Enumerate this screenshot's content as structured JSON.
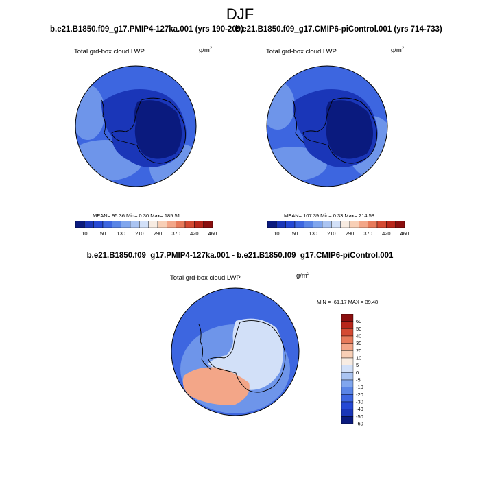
{
  "title": "DJF",
  "panels": [
    {
      "title": "b.e21.B1850.f09_g17.PMIP4-127ka.001 (yrs 190-209)",
      "variable": "Total grd-box cloud LWP",
      "units": "g/m",
      "units_exp": "2",
      "stats": "MEAN=  95.36  Min=   0.30  Max= 185.51"
    },
    {
      "title": "b.e21.B1850.f09_g17.CMIP6-piControl.001 (yrs 714-733)",
      "variable": "Total grd-box cloud LWP",
      "units": "g/m",
      "units_exp": "2",
      "stats": "MEAN= 107.39  Min=   0.33  Max= 214.58"
    }
  ],
  "diff_panel": {
    "title": "b.e21.B1850.f09_g17.PMIP4-127ka.001 - b.e21.B1850.f09_g17.CMIP6-piControl.001",
    "variable": "Total grd-box cloud LWP",
    "units": "g/m",
    "units_exp": "2",
    "stats": "MIN = -61.17  MAX =  39.48"
  },
  "abs_colorbar": {
    "colors": [
      "#0a1a7e",
      "#1a36b8",
      "#2548d4",
      "#3d66e0",
      "#5a85e6",
      "#80a6ee",
      "#aac4f2",
      "#d2e0f8",
      "#f8ece2",
      "#f8cfb6",
      "#f3a688",
      "#e77a5a",
      "#d44a32",
      "#b8261a",
      "#8a0e0e"
    ],
    "labels": [
      "10",
      "50",
      "130",
      "210",
      "290",
      "370",
      "420",
      "460"
    ]
  },
  "diff_colorbar": {
    "colors": [
      "#0a1a7e",
      "#1a36b8",
      "#2548d4",
      "#3d66e0",
      "#5a85e6",
      "#80a6ee",
      "#aac4f2",
      "#d2e0f8",
      "#f8ece2",
      "#f8cfb6",
      "#f3a688",
      "#e77a5a",
      "#d44a32",
      "#b8261a",
      "#8a0e0e"
    ],
    "labels": [
      "60",
      "50",
      "40",
      "30",
      "20",
      "10",
      "5",
      "0",
      "-5",
      "-10",
      "-20",
      "-30",
      "-40",
      "-50",
      "-60"
    ]
  },
  "map_colors": {
    "ocean_light": "#6e95ea",
    "ocean_mid": "#3d66e0",
    "coast_deep": "#1a36b8",
    "interior": "#0a1a7e",
    "diff_ocean": "#3d66e0",
    "diff_land": "#d2e0f8",
    "diff_warm": "#f3a688"
  }
}
